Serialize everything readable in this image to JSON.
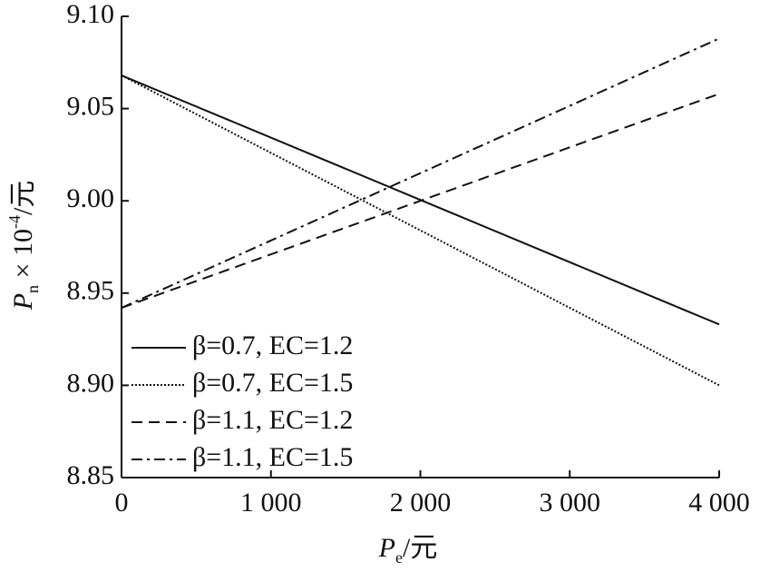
{
  "chart_data": {
    "type": "line",
    "x_label": {
      "symbol": "P",
      "subscript": "e",
      "unit": "/元"
    },
    "y_label": {
      "symbol": "P",
      "subscript": "n",
      "multiplier": " × 10",
      "superscript": "-4",
      "unit": "/元"
    },
    "x": [
      0,
      4000
    ],
    "series": [
      {
        "name": "β=0.7, EC=1.2",
        "color": "#111111",
        "dash": "solid",
        "values": [
          9.068,
          8.933
        ]
      },
      {
        "name": "β=0.7, EC=1.5",
        "color": "#111111",
        "dash": "dotted",
        "values": [
          9.068,
          8.9
        ]
      },
      {
        "name": "β=1.1, EC=1.2",
        "color": "#111111",
        "dash": "dashed",
        "values": [
          8.942,
          9.058
        ]
      },
      {
        "name": "β=1.1, EC=1.5",
        "color": "#111111",
        "dash": "dashdot",
        "values": [
          8.942,
          9.088
        ]
      }
    ],
    "xlim": [
      0,
      4000
    ],
    "xticks": [
      0,
      {
        "value": 1000,
        "label": "1 000"
      },
      {
        "value": 2000,
        "label": "2 000"
      },
      {
        "value": 3000,
        "label": "3 000"
      },
      {
        "value": 4000,
        "label": "4 000"
      }
    ],
    "ylim": [
      8.85,
      9.1
    ],
    "yticks": [
      8.85,
      {
        "value": 8.9,
        "label": "8.90"
      },
      8.95,
      {
        "value": 9,
        "label": "9.00"
      },
      9.05,
      {
        "value": 9.1,
        "label": "9.10"
      }
    ],
    "legend": "lower-left"
  }
}
